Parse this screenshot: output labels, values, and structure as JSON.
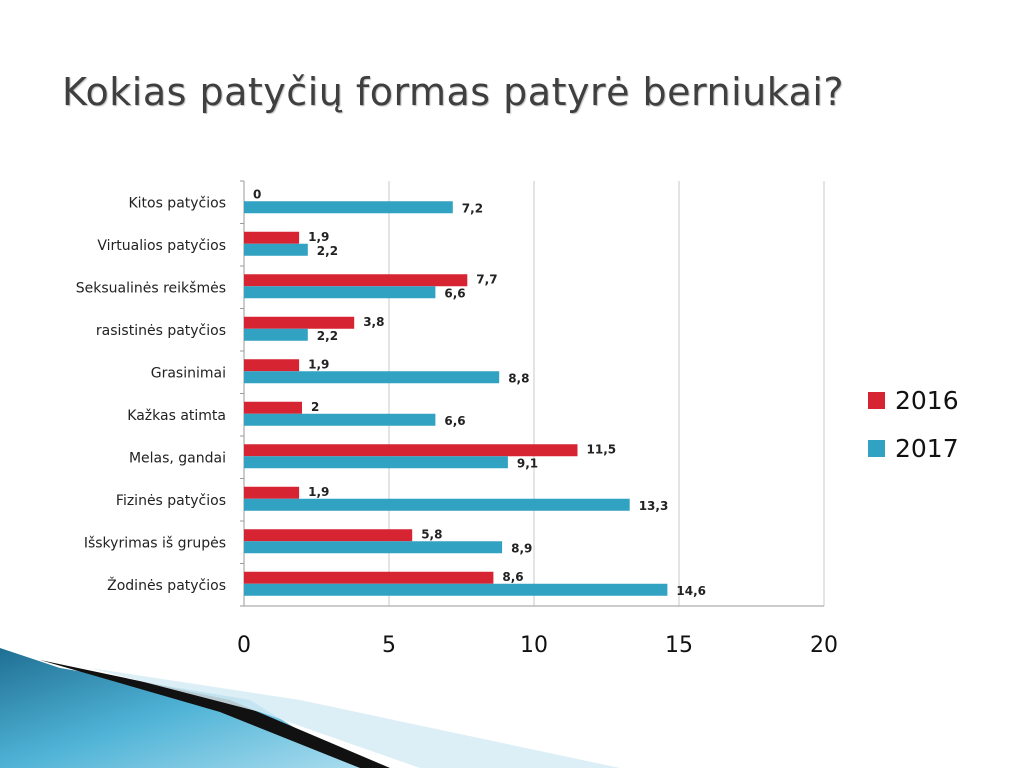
{
  "title": "Kokias patyčių formas patyrė berniukai?",
  "colors": {
    "series_2016": "#d62433",
    "series_2017": "#31a2c2",
    "gridline": "#c8c8c8",
    "axis": "#9a9a9a"
  },
  "chart_data": {
    "type": "bar",
    "orientation": "horizontal",
    "title": "Kokias patyčių formas patyrė berniukai?",
    "categories": [
      "Kitos patyčios",
      "Virtualios patyčios",
      "Seksualinės reikšmės",
      "rasistinės patyčios",
      "Grasinimai",
      "Kažkas atimta",
      "Melas, gandai",
      "Fizinės patyčios",
      "Išskyrimas iš grupės",
      "Žodinės patyčios"
    ],
    "series": [
      {
        "name": "2016",
        "values": [
          0,
          1.9,
          7.7,
          3.8,
          1.9,
          2,
          11.5,
          1.9,
          5.8,
          8.6
        ],
        "labels": [
          "0",
          "1,9",
          "7,7",
          "3,8",
          "1,9",
          "2",
          "11,5",
          "1,9",
          "5,8",
          "8,6"
        ]
      },
      {
        "name": "2017",
        "values": [
          7.2,
          2.2,
          6.6,
          2.2,
          8.8,
          6.6,
          9.1,
          13.3,
          8.9,
          14.6
        ],
        "labels": [
          "7,2",
          "2,2",
          "6,6",
          "2,2",
          "8,8",
          "6,6",
          "9,1",
          "13,3",
          "8,9",
          "14,6"
        ]
      }
    ],
    "xlim": [
      0,
      20
    ],
    "xticks": [
      0,
      5,
      10,
      15,
      20
    ],
    "xlabel": "",
    "ylabel": "",
    "grid": true,
    "legend_position": "right"
  }
}
